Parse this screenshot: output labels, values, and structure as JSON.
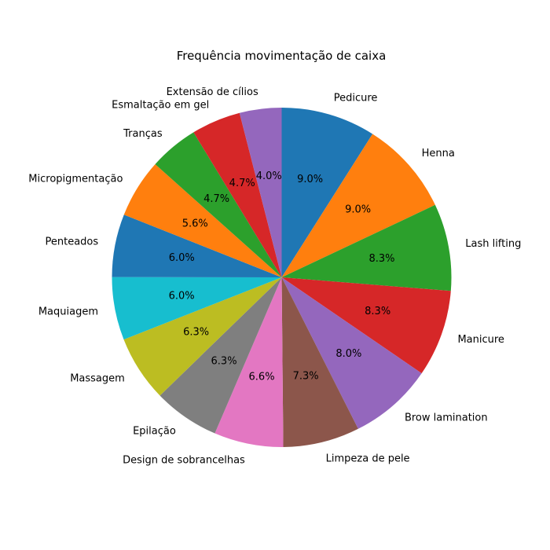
{
  "chart_data": {
    "type": "pie",
    "title": "Frequência movimentação de caixa",
    "start_angle_deg": 90,
    "direction": "clockwise",
    "categories": [
      "Pedicure",
      "Henna",
      "Lash lifting",
      "Manicure",
      "Brow lamination",
      "Limpeza de pele",
      "Design de sobrancelhas",
      "Epilação",
      "Massagem",
      "Maquiagem",
      "Penteados",
      "Micropigmentação",
      "Tranças",
      "Esmaltação em gel",
      "Extensão de cílios"
    ],
    "values": [
      9.0,
      9.0,
      8.3,
      8.3,
      8.0,
      7.3,
      6.6,
      6.3,
      6.3,
      6.0,
      6.0,
      5.6,
      4.7,
      4.7,
      4.0
    ],
    "value_labels": [
      "9.0%",
      "9.0%",
      "8.3%",
      "8.3%",
      "8.0%",
      "7.3%",
      "6.6%",
      "6.3%",
      "6.3%",
      "6.0%",
      "6.0%",
      "5.6%",
      "4.7%",
      "4.7%",
      "4.0%"
    ],
    "colors": [
      "#1f77b4",
      "#ff7f0e",
      "#2ca02c",
      "#d62728",
      "#9467bd",
      "#8c564b",
      "#e377c2",
      "#7f7f7f",
      "#bcbd22",
      "#17becf",
      "#1f77b4",
      "#ff7f0e",
      "#2ca02c",
      "#d62728",
      "#9467bd"
    ]
  }
}
